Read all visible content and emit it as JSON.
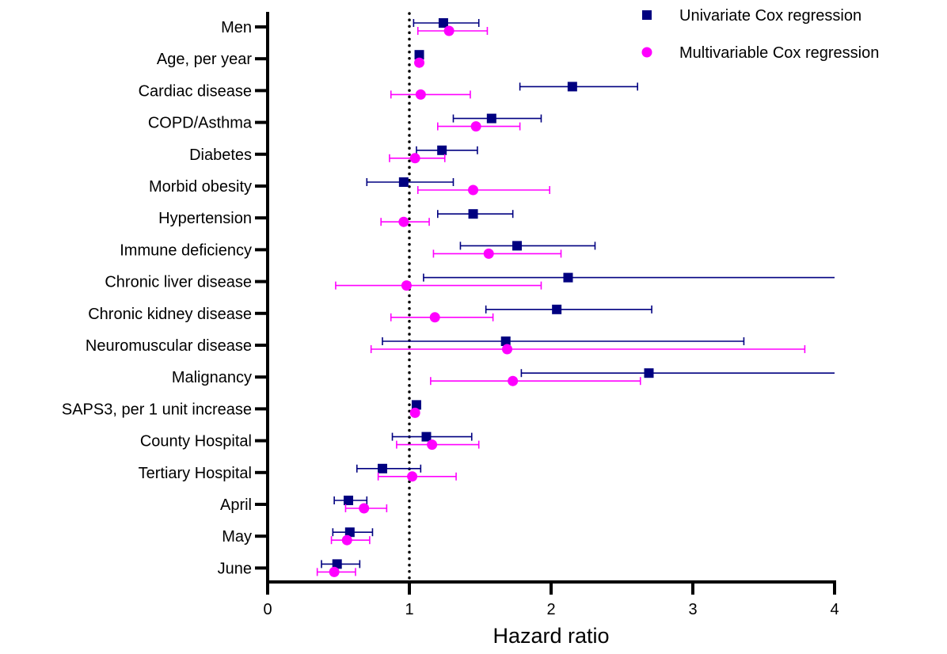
{
  "chart_data": {
    "type": "scatter",
    "xlabel": "Hazard ratio",
    "xlim": [
      0,
      4
    ],
    "xticks": [
      "0",
      "1",
      "2",
      "3",
      "4"
    ],
    "reference_line_x": 1,
    "legend_position": "top-right",
    "categories": [
      "Men",
      "Age, per year",
      "Cardiac disease",
      "COPD/Asthma",
      "Diabetes",
      "Morbid obesity",
      "Hypertension",
      "Immune deficiency",
      "Chronic liver disease",
      "Chronic kidney disease",
      "Neuromuscular disease",
      "Malignancy",
      "SAPS3, per 1 unit increase",
      "County Hospital",
      "Tertiary Hospital",
      "April",
      "May",
      "June"
    ],
    "series": [
      {
        "name": "Univariate Cox regression",
        "color": "#000080",
        "marker": "square",
        "values": [
          1.24,
          1.07,
          2.15,
          1.58,
          1.23,
          0.96,
          1.45,
          1.76,
          2.12,
          2.04,
          1.68,
          2.69,
          1.05,
          1.12,
          0.81,
          0.57,
          0.58,
          0.49
        ],
        "lower": [
          1.03,
          1.05,
          1.78,
          1.31,
          1.05,
          0.7,
          1.2,
          1.36,
          1.1,
          1.54,
          0.81,
          1.79,
          1.04,
          0.88,
          0.63,
          0.47,
          0.46,
          0.38
        ],
        "upper": [
          1.49,
          1.09,
          2.61,
          1.93,
          1.48,
          1.31,
          1.73,
          2.31,
          4.0,
          2.71,
          3.36,
          4.0,
          1.07,
          1.44,
          1.08,
          0.7,
          0.74,
          0.65
        ]
      },
      {
        "name": "Multivariable Cox regression",
        "color": "#ff00ff",
        "marker": "circle",
        "values": [
          1.28,
          1.07,
          1.08,
          1.47,
          1.04,
          1.45,
          0.96,
          1.56,
          0.98,
          1.18,
          1.69,
          1.73,
          1.04,
          1.16,
          1.02,
          0.68,
          0.56,
          0.47
        ],
        "lower": [
          1.06,
          1.05,
          0.87,
          1.2,
          0.86,
          1.06,
          0.8,
          1.17,
          0.48,
          0.87,
          0.73,
          1.15,
          1.03,
          0.91,
          0.78,
          0.55,
          0.45,
          0.35
        ],
        "upper": [
          1.55,
          1.09,
          1.43,
          1.78,
          1.25,
          1.99,
          1.14,
          2.07,
          1.93,
          1.59,
          3.79,
          2.63,
          1.06,
          1.49,
          1.33,
          0.84,
          0.72,
          0.62
        ]
      }
    ]
  }
}
